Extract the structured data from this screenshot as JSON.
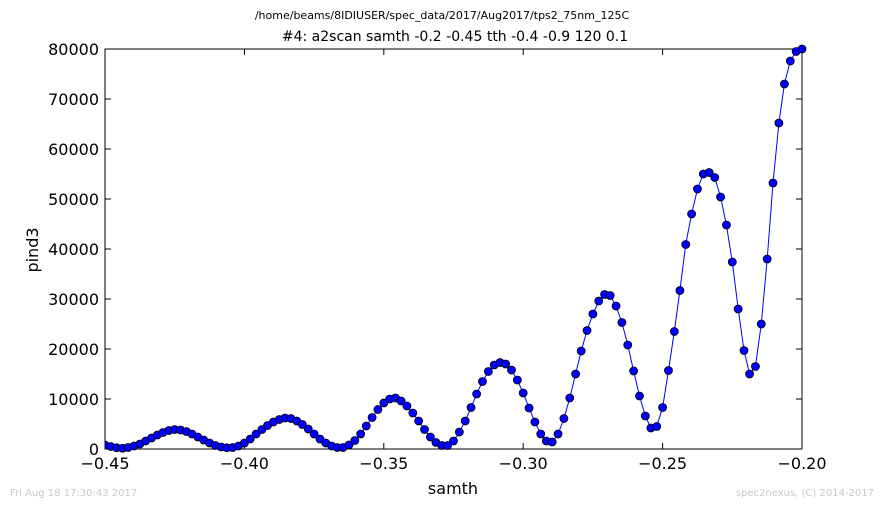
{
  "header": {
    "path": "/home/beams/8IDIUSER/spec_data/2017/Aug2017/tps2_75nm_125C",
    "scan": "#4: a2scan  samth -0.2 -0.45  tth -0.4 -0.9  120 0.1"
  },
  "footer": {
    "timestamp": "Fri Aug 18 17:30:43 2017",
    "credit": "spec2nexus, (C) 2014-2017"
  },
  "chart_data": {
    "type": "line",
    "title": "#4: a2scan  samth -0.2 -0.45  tth -0.4 -0.9  120 0.1",
    "xlabel": "samth",
    "ylabel": "pind3",
    "xlim": [
      -0.45,
      -0.2
    ],
    "ylim": [
      0,
      80000
    ],
    "x_ticks": [
      "−0.45",
      "−0.40",
      "−0.35",
      "−0.30",
      "−0.25",
      "−0.20"
    ],
    "y_ticks": [
      "0",
      "10000",
      "20000",
      "30000",
      "40000",
      "50000",
      "60000",
      "70000",
      "80000"
    ],
    "grid": false,
    "marker": "circle",
    "color": "#0000ff",
    "marker_edge": "#000000",
    "series": [
      {
        "x": [
          -0.45,
          -0.4479,
          -0.4458,
          -0.4437,
          -0.4417,
          -0.4396,
          -0.4375,
          -0.4354,
          -0.4333,
          -0.4312,
          -0.4292,
          -0.4271,
          -0.425,
          -0.4229,
          -0.4208,
          -0.4188,
          -0.4167,
          -0.4146,
          -0.4125,
          -0.4104,
          -0.4083,
          -0.4063,
          -0.4042,
          -0.4021,
          -0.4,
          -0.3979,
          -0.3958,
          -0.3937,
          -0.3917,
          -0.3896,
          -0.3875,
          -0.3854,
          -0.3833,
          -0.3812,
          -0.3792,
          -0.3771,
          -0.375,
          -0.3729,
          -0.3708,
          -0.3687,
          -0.3667,
          -0.3646,
          -0.3625,
          -0.3604,
          -0.3583,
          -0.3563,
          -0.3542,
          -0.3521,
          -0.35,
          -0.3479,
          -0.3458,
          -0.3438,
          -0.3417,
          -0.3396,
          -0.3375,
          -0.3354,
          -0.3333,
          -0.3313,
          -0.3292,
          -0.3271,
          -0.325,
          -0.3229,
          -0.3208,
          -0.3187,
          -0.3167,
          -0.3146,
          -0.3125,
          -0.3104,
          -0.3083,
          -0.3063,
          -0.3042,
          -0.3021,
          -0.3,
          -0.2979,
          -0.2958,
          -0.2937,
          -0.2917,
          -0.2896,
          -0.2875,
          -0.2854,
          -0.2833,
          -0.2812,
          -0.2792,
          -0.2771,
          -0.275,
          -0.2729,
          -0.2708,
          -0.2688,
          -0.2667,
          -0.2646,
          -0.2625,
          -0.2604,
          -0.2583,
          -0.2562,
          -0.2542,
          -0.2521,
          -0.25,
          -0.2479,
          -0.2458,
          -0.2438,
          -0.2417,
          -0.2396,
          -0.2375,
          -0.2354,
          -0.2333,
          -0.2313,
          -0.2292,
          -0.2271,
          -0.225,
          -0.2229,
          -0.2208,
          -0.2188,
          -0.2167,
          -0.2146,
          -0.2125,
          -0.2104,
          -0.2083,
          -0.2063,
          -0.2042,
          -0.2021,
          -0.2
        ],
        "y": [
          800,
          500,
          250,
          150,
          300,
          600,
          1000,
          1600,
          2200,
          2800,
          3300,
          3700,
          3900,
          3800,
          3500,
          3000,
          2400,
          1800,
          1200,
          700,
          400,
          250,
          300,
          600,
          1200,
          2000,
          3000,
          3900,
          4700,
          5400,
          5900,
          6200,
          6100,
          5600,
          4900,
          4000,
          3000,
          2000,
          1200,
          600,
          300,
          300,
          800,
          1700,
          3000,
          4600,
          6300,
          7900,
          9200,
          10000,
          10200,
          9600,
          8600,
          7200,
          5600,
          3900,
          2400,
          1300,
          700,
          700,
          1600,
          3400,
          5600,
          8300,
          11000,
          13500,
          15500,
          16800,
          17300,
          17000,
          15800,
          13800,
          11200,
          8200,
          5400,
          3000,
          1600,
          1400,
          3000,
          6100,
          10200,
          15000,
          19600,
          23700,
          27000,
          29600,
          30900,
          30700,
          28600,
          25300,
          20800,
          15600,
          10600,
          6600,
          4200,
          4500,
          8300,
          15700,
          23500,
          31700,
          40900,
          47000,
          52000,
          55000,
          55300,
          54300,
          50400,
          44800,
          37400,
          28000,
          19700,
          15000,
          16500,
          25000,
          38000,
          53200,
          65200,
          73000,
          77600,
          79500,
          80000
        ]
      }
    ]
  }
}
